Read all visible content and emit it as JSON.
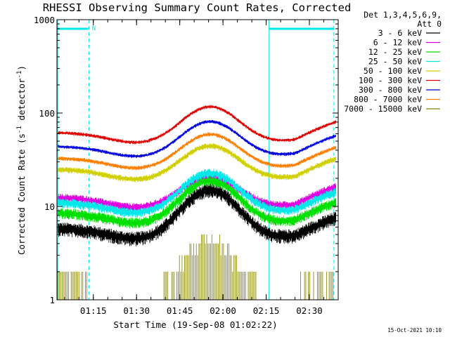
{
  "chart_data": {
    "type": "line",
    "title": "RHESSI Observing Summary Count Rates, Corrected",
    "xlabel": "Start Time (19-Sep-08 01:02:22)",
    "ylabel_main": "Corrected Count Rate (s",
    "ylabel_sup1": "-1",
    "ylabel_mid": " detector",
    "ylabel_sup2": "-1",
    "ylabel_end": ")",
    "yscale": "log",
    "ylim": [
      1,
      1000
    ],
    "xlim_minutes": [
      62.37,
      160.0
    ],
    "y_ticks": [
      {
        "value": 1,
        "label": "1"
      },
      {
        "value": 10,
        "label": "10"
      },
      {
        "value": 100,
        "label": "100"
      },
      {
        "value": 1000,
        "label": "1000"
      }
    ],
    "x_ticks": [
      {
        "minute": 75,
        "label": "01:15"
      },
      {
        "minute": 90,
        "label": "01:30"
      },
      {
        "minute": 105,
        "label": "01:45"
      },
      {
        "minute": 120,
        "label": "02:00"
      },
      {
        "minute": 135,
        "label": "02:15"
      },
      {
        "minute": 150,
        "label": "02:30"
      }
    ],
    "legend_header": [
      "Det 1,3,4,5,6,9,",
      "Att 0"
    ],
    "series": [
      {
        "name": "3 - 6 keV",
        "color": "#000000",
        "base": 5.8,
        "peak": 15,
        "noise": 0.12,
        "sparse": false
      },
      {
        "name": "6 - 12 keV",
        "color": "#e000e0",
        "base": 12.5,
        "peak": 21,
        "noise": 0.07,
        "sparse": false
      },
      {
        "name": "12 - 25 keV",
        "color": "#00e000",
        "base": 8.5,
        "peak": 19,
        "noise": 0.09,
        "sparse": false
      },
      {
        "name": "25 - 50 keV",
        "color": "#00e8e8",
        "base": 11,
        "peak": 23,
        "noise": 0.08,
        "sparse": false
      },
      {
        "name": "50 - 100 keV",
        "color": "#d0d000",
        "base": 25,
        "peak": 45,
        "noise": 0.05,
        "sparse": false
      },
      {
        "name": "100 - 300 keV",
        "color": "#e00000",
        "base": 62,
        "peak": 118,
        "noise": 0.03,
        "sparse": false
      },
      {
        "name": "300 - 800 keV",
        "color": "#0000e0",
        "base": 44,
        "peak": 82,
        "noise": 0.03,
        "sparse": false
      },
      {
        "name": "800 - 7000 keV",
        "color": "#ff8000",
        "base": 33,
        "peak": 60,
        "noise": 0.035,
        "sparse": false
      },
      {
        "name": "7000 - 15000 keV",
        "color": "#808000",
        "base": 1,
        "peak": 4,
        "noise": 0,
        "sparse": true
      }
    ],
    "annotations": [
      {
        "text": "N"
      }
    ],
    "timestamp": "15-Oct-2021 10:10"
  }
}
